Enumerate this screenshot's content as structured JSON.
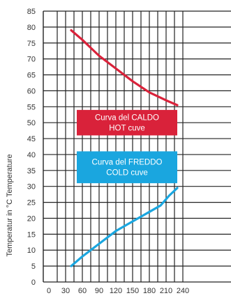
{
  "chart_data": {
    "type": "line",
    "ylabel": "Temperatur in °C Temperature",
    "xlabel": "",
    "title": "",
    "xlim": [
      0,
      240
    ],
    "ylim": [
      0,
      85
    ],
    "x_ticks": [
      0,
      30,
      60,
      90,
      120,
      150,
      180,
      210,
      240
    ],
    "y_ticks": [
      0,
      5,
      10,
      15,
      20,
      25,
      30,
      35,
      40,
      45,
      50,
      55,
      60,
      65,
      70,
      75,
      80,
      85
    ],
    "grid": true,
    "series": [
      {
        "color": "#d9223a",
        "points": [
          [
            40,
            79
          ],
          [
            60,
            76
          ],
          [
            90,
            71
          ],
          [
            120,
            67
          ],
          [
            150,
            63
          ],
          [
            180,
            59.5
          ],
          [
            210,
            57
          ],
          [
            230,
            55.5
          ]
        ]
      },
      {
        "color": "#1aa6df",
        "points": [
          [
            40,
            5
          ],
          [
            60,
            8
          ],
          [
            90,
            12
          ],
          [
            120,
            16
          ],
          [
            150,
            19
          ],
          [
            180,
            22
          ],
          [
            200,
            24
          ],
          [
            215,
            27
          ],
          [
            230,
            29.5
          ]
        ]
      }
    ],
    "annotations": [
      {
        "lines": [
          "Curva del CALDO",
          "HOT cuve"
        ],
        "color": "#d9223a",
        "x_range": [
          50,
          230
        ],
        "y_range": [
          46,
          54
        ]
      },
      {
        "lines": [
          "Curva del FREDDO",
          "COLD cuve"
        ],
        "color": "#1aa6df",
        "x_range": [
          50,
          230
        ],
        "y_range": [
          31,
          41
        ]
      }
    ]
  }
}
